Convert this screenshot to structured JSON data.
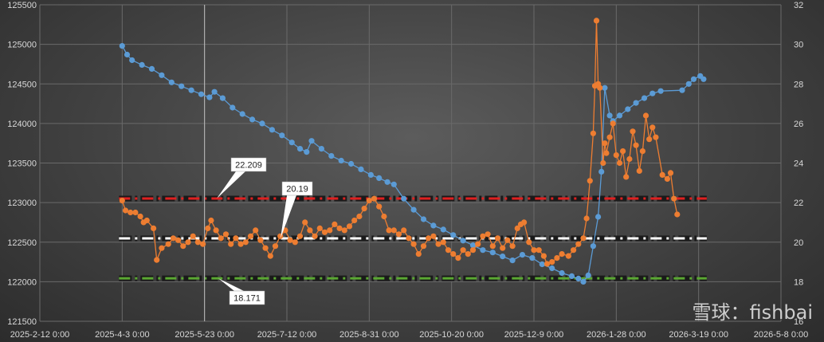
{
  "chart_data": {
    "type": "line",
    "x_type": "date",
    "x_ticks": [
      "2025-2-12 0:00",
      "2025-4-3 0:00",
      "2025-5-23 0:00",
      "2025-7-12 0:00",
      "2025-8-31 0:00",
      "2025-10-20 0:00",
      "2025-12-9 0:00",
      "2026-1-28 0:00",
      "2026-3-19 0:00",
      "2026-5-8 0:00"
    ],
    "x_range": [
      "2025-02-12",
      "2026-05-08"
    ],
    "y_left": {
      "ticks": [
        121500,
        122000,
        122500,
        123000,
        123500,
        124000,
        124500,
        125000,
        125500
      ],
      "range": [
        121500,
        125500
      ]
    },
    "y_right": {
      "ticks": [
        16,
        18,
        20,
        22,
        24,
        26,
        28,
        30,
        32
      ],
      "range": [
        16,
        32
      ]
    },
    "grid": true,
    "cursor_line": "2025-05-23",
    "series": [
      {
        "axis": "left",
        "color": "#5b9bd5",
        "points": [
          [
            "2025-04-03",
            124980
          ],
          [
            "2025-04-06",
            124870
          ],
          [
            "2025-04-09",
            124800
          ],
          [
            "2025-04-15",
            124740
          ],
          [
            "2025-04-21",
            124690
          ],
          [
            "2025-04-27",
            124610
          ],
          [
            "2025-05-03",
            124520
          ],
          [
            "2025-05-09",
            124470
          ],
          [
            "2025-05-15",
            124420
          ],
          [
            "2025-05-21",
            124370
          ],
          [
            "2025-05-26",
            124330
          ],
          [
            "2025-05-29",
            124400
          ],
          [
            "2025-06-03",
            124320
          ],
          [
            "2025-06-09",
            124200
          ],
          [
            "2025-06-15",
            124120
          ],
          [
            "2025-06-21",
            124050
          ],
          [
            "2025-06-27",
            124000
          ],
          [
            "2025-07-03",
            123920
          ],
          [
            "2025-07-09",
            123850
          ],
          [
            "2025-07-15",
            123760
          ],
          [
            "2025-07-20",
            123680
          ],
          [
            "2025-07-24",
            123640
          ],
          [
            "2025-07-27",
            123780
          ],
          [
            "2025-08-02",
            123680
          ],
          [
            "2025-08-08",
            123590
          ],
          [
            "2025-08-14",
            123530
          ],
          [
            "2025-08-20",
            123490
          ],
          [
            "2025-08-26",
            123420
          ],
          [
            "2025-09-01",
            123350
          ],
          [
            "2025-09-06",
            123310
          ],
          [
            "2025-09-11",
            123260
          ],
          [
            "2025-09-15",
            123230
          ],
          [
            "2025-09-21",
            123050
          ],
          [
            "2025-09-27",
            122910
          ],
          [
            "2025-10-03",
            122790
          ],
          [
            "2025-10-09",
            122710
          ],
          [
            "2025-10-15",
            122660
          ],
          [
            "2025-10-21",
            122590
          ],
          [
            "2025-10-27",
            122520
          ],
          [
            "2025-11-02",
            122460
          ],
          [
            "2025-11-08",
            122400
          ],
          [
            "2025-11-14",
            122370
          ],
          [
            "2025-11-20",
            122320
          ],
          [
            "2025-11-26",
            122270
          ],
          [
            "2025-12-02",
            122340
          ],
          [
            "2025-12-08",
            122300
          ],
          [
            "2025-12-14",
            122220
          ],
          [
            "2025-12-20",
            122170
          ],
          [
            "2025-12-26",
            122110
          ],
          [
            "2026-01-01",
            122070
          ],
          [
            "2026-01-05",
            122040
          ],
          [
            "2026-01-08",
            122000
          ],
          [
            "2026-01-11",
            122080
          ],
          [
            "2026-01-14",
            122450
          ],
          [
            "2026-01-17",
            122820
          ],
          [
            "2026-01-19",
            123390
          ],
          [
            "2026-01-21",
            124450
          ],
          [
            "2026-01-24",
            124100
          ],
          [
            "2026-01-26",
            124030
          ],
          [
            "2026-01-30",
            124100
          ],
          [
            "2026-02-04",
            124180
          ],
          [
            "2026-02-09",
            124260
          ],
          [
            "2026-02-14",
            124320
          ],
          [
            "2026-02-19",
            124380
          ],
          [
            "2026-02-24",
            124410
          ],
          [
            "2026-03-09",
            124420
          ],
          [
            "2026-03-13",
            124500
          ],
          [
            "2026-03-16",
            124560
          ],
          [
            "2026-03-20",
            124600
          ],
          [
            "2026-03-22",
            124560
          ]
        ]
      },
      {
        "axis": "right",
        "color": "#ed7d31",
        "points": [
          [
            "2025-04-03",
            22.1
          ],
          [
            "2025-04-05",
            21.6
          ],
          [
            "2025-04-08",
            21.5
          ],
          [
            "2025-04-11",
            21.5
          ],
          [
            "2025-04-14",
            21.3
          ],
          [
            "2025-04-16",
            21.0
          ],
          [
            "2025-04-18",
            21.1
          ],
          [
            "2025-04-22",
            20.7
          ],
          [
            "2025-04-24",
            19.1
          ],
          [
            "2025-04-27",
            19.7
          ],
          [
            "2025-05-01",
            19.9
          ],
          [
            "2025-05-04",
            20.2
          ],
          [
            "2025-05-07",
            20.1
          ],
          [
            "2025-05-10",
            19.8
          ],
          [
            "2025-05-13",
            20.0
          ],
          [
            "2025-05-16",
            20.3
          ],
          [
            "2025-05-19",
            20.0
          ],
          [
            "2025-05-22",
            19.9
          ],
          [
            "2025-05-25",
            20.7
          ],
          [
            "2025-05-27",
            21.1
          ],
          [
            "2025-05-30",
            20.6
          ],
          [
            "2025-06-02",
            20.2
          ],
          [
            "2025-06-05",
            20.4
          ],
          [
            "2025-06-08",
            19.9
          ],
          [
            "2025-06-11",
            20.2
          ],
          [
            "2025-06-14",
            19.9
          ],
          [
            "2025-06-17",
            20.0
          ],
          [
            "2025-06-20",
            20.3
          ],
          [
            "2025-06-23",
            20.6
          ],
          [
            "2025-06-26",
            20.1
          ],
          [
            "2025-06-29",
            19.7
          ],
          [
            "2025-07-02",
            19.3
          ],
          [
            "2025-07-05",
            19.8
          ],
          [
            "2025-07-08",
            20.3
          ],
          [
            "2025-07-11",
            20.6
          ],
          [
            "2025-07-14",
            20.1
          ],
          [
            "2025-07-17",
            20.0
          ],
          [
            "2025-07-20",
            20.3
          ],
          [
            "2025-07-23",
            21.0
          ],
          [
            "2025-07-26",
            20.6
          ],
          [
            "2025-07-29",
            20.3
          ],
          [
            "2025-08-01",
            20.7
          ],
          [
            "2025-08-04",
            20.5
          ],
          [
            "2025-08-07",
            20.6
          ],
          [
            "2025-08-10",
            20.9
          ],
          [
            "2025-08-13",
            20.7
          ],
          [
            "2025-08-16",
            20.6
          ],
          [
            "2025-08-19",
            20.8
          ],
          [
            "2025-08-22",
            21.1
          ],
          [
            "2025-08-25",
            21.3
          ],
          [
            "2025-08-28",
            21.7
          ],
          [
            "2025-08-31",
            22.1
          ],
          [
            "2025-09-03",
            22.2
          ],
          [
            "2025-09-06",
            21.8
          ],
          [
            "2025-09-09",
            21.3
          ],
          [
            "2025-09-12",
            20.6
          ],
          [
            "2025-09-15",
            20.6
          ],
          [
            "2025-09-18",
            20.4
          ],
          [
            "2025-09-21",
            20.6
          ],
          [
            "2025-09-24",
            20.2
          ],
          [
            "2025-09-27",
            19.9
          ],
          [
            "2025-09-30",
            19.4
          ],
          [
            "2025-10-03",
            19.8
          ],
          [
            "2025-10-06",
            20.2
          ],
          [
            "2025-10-09",
            20.3
          ],
          [
            "2025-10-12",
            19.9
          ],
          [
            "2025-10-15",
            20.0
          ],
          [
            "2025-10-18",
            19.6
          ],
          [
            "2025-10-21",
            19.4
          ],
          [
            "2025-10-24",
            19.2
          ],
          [
            "2025-10-27",
            19.6
          ],
          [
            "2025-10-30",
            19.4
          ],
          [
            "2025-11-02",
            19.6
          ],
          [
            "2025-11-05",
            19.9
          ],
          [
            "2025-11-08",
            20.3
          ],
          [
            "2025-11-11",
            20.4
          ],
          [
            "2025-11-14",
            19.8
          ],
          [
            "2025-11-17",
            20.2
          ],
          [
            "2025-11-20",
            19.7
          ],
          [
            "2025-11-23",
            20.1
          ],
          [
            "2025-11-26",
            19.8
          ],
          [
            "2025-11-29",
            20.7
          ],
          [
            "2025-12-01",
            20.9
          ],
          [
            "2025-12-03",
            21.0
          ],
          [
            "2025-12-06",
            20.0
          ],
          [
            "2025-12-09",
            19.6
          ],
          [
            "2025-12-12",
            19.6
          ],
          [
            "2025-12-15",
            19.3
          ],
          [
            "2025-12-17",
            18.9
          ],
          [
            "2025-12-20",
            19.0
          ],
          [
            "2025-12-23",
            19.2
          ],
          [
            "2025-12-26",
            19.4
          ],
          [
            "2025-12-30",
            19.3
          ],
          [
            "2026-01-02",
            19.6
          ],
          [
            "2026-01-05",
            19.9
          ],
          [
            "2026-01-08",
            20.2
          ],
          [
            "2026-01-10",
            21.2
          ],
          [
            "2026-01-12",
            23.1
          ],
          [
            "2026-01-14",
            25.5
          ],
          [
            "2026-01-15",
            27.9
          ],
          [
            "2026-01-16",
            31.2
          ],
          [
            "2026-01-17",
            28.0
          ],
          [
            "2026-01-18",
            27.8
          ],
          [
            "2026-01-20",
            24.0
          ],
          [
            "2026-01-21",
            25.0
          ],
          [
            "2026-01-22",
            24.5
          ],
          [
            "2026-01-24",
            25.3
          ],
          [
            "2026-01-26",
            26.0
          ],
          [
            "2026-01-28",
            24.4
          ],
          [
            "2026-01-30",
            24.0
          ],
          [
            "2026-02-01",
            24.6
          ],
          [
            "2026-02-03",
            23.3
          ],
          [
            "2026-02-05",
            24.2
          ],
          [
            "2026-02-07",
            25.6
          ],
          [
            "2026-02-09",
            24.9
          ],
          [
            "2026-02-11",
            23.6
          ],
          [
            "2026-02-13",
            24.6
          ],
          [
            "2026-02-15",
            26.4
          ],
          [
            "2026-02-17",
            25.2
          ],
          [
            "2026-02-19",
            25.8
          ],
          [
            "2026-02-21",
            25.3
          ],
          [
            "2026-02-25",
            23.4
          ],
          [
            "2026-02-28",
            23.2
          ],
          [
            "2026-03-02",
            23.5
          ],
          [
            "2026-03-04",
            22.2
          ],
          [
            "2026-03-06",
            21.4
          ]
        ]
      }
    ],
    "reference_lines": [
      {
        "value": 22.209,
        "color": "#e02020",
        "label": "22.209"
      },
      {
        "value": 20.19,
        "color": "#ffffff",
        "label": "20.19"
      },
      {
        "value": 18.171,
        "color": "#5aa832",
        "label": "18.171"
      }
    ]
  },
  "watermark": "雪球：fishbai"
}
